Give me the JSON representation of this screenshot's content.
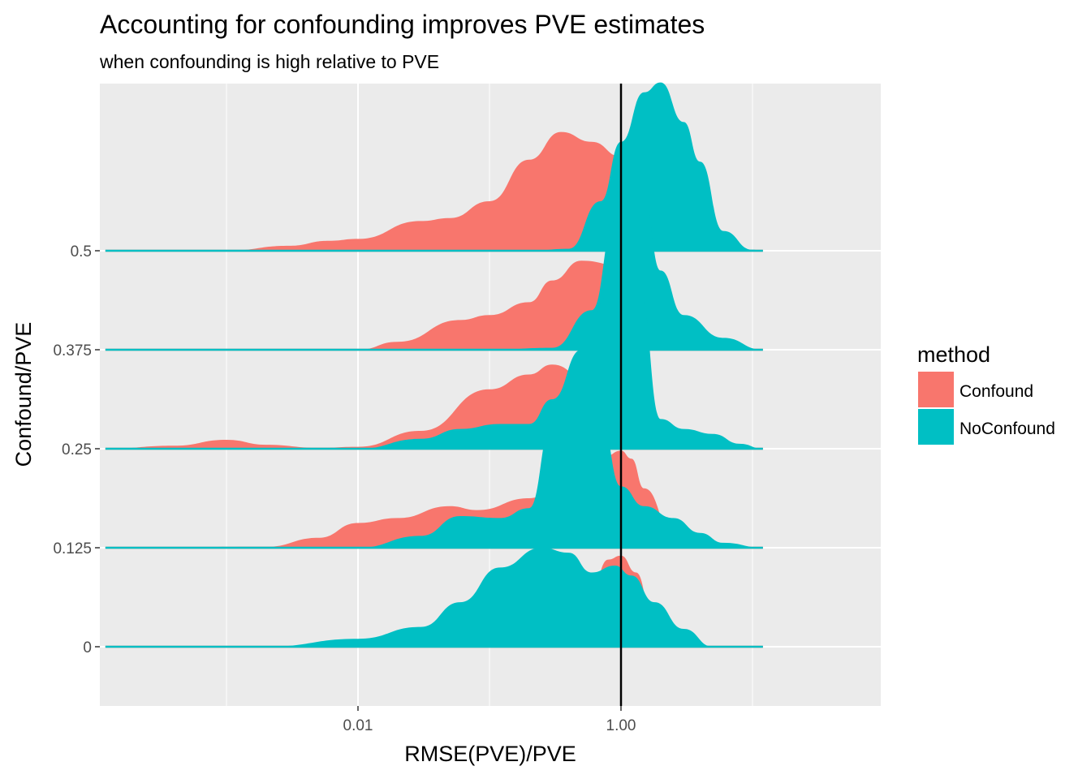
{
  "chart_data": {
    "type": "area",
    "title": "Accounting for confounding improves PVE estimates",
    "subtitle": "when confounding is high relative to PVE",
    "xlabel": "RMSE(PVE)/PVE",
    "ylabel": "Confound/PVE",
    "x_scale": "log10",
    "xlim": [
      6e-05,
      15
    ],
    "x_ticks": [
      {
        "value": 0.01,
        "label": "0.01"
      },
      {
        "value": 1,
        "label": "1.00"
      }
    ],
    "x_minor_ticks": [
      0.001,
      0.1,
      10
    ],
    "y_ticks": [
      "0",
      "0.125",
      "0.25",
      "0.375",
      "0.5"
    ],
    "vline_x": 1.0,
    "legend": {
      "title": "method",
      "position": "right"
    },
    "colors": {
      "Confound": "#F8766D",
      "NoConfound": "#00BFC4"
    },
    "series": [
      {
        "name": "Confound",
        "ridges": [
          {
            "group": "0",
            "points": [
              [
                0.00012,
                0
              ],
              [
                0.0034,
                0
              ],
              [
                0.01,
                0.01
              ],
              [
                0.2,
                0.02
              ],
              [
                0.35,
                0.04
              ],
              [
                0.45,
                0.2
              ],
              [
                0.6,
                0.6
              ],
              [
                0.8,
                0.88
              ],
              [
                1.0,
                0.92
              ],
              [
                1.3,
                0.75
              ],
              [
                1.8,
                0.2
              ],
              [
                3,
                0.02
              ],
              [
                5,
                0
              ],
              [
                12,
                0
              ]
            ]
          },
          {
            "group": "0.125",
            "points": [
              [
                0.00012,
                0
              ],
              [
                0.002,
                0.01
              ],
              [
                0.005,
                0.1
              ],
              [
                0.01,
                0.25
              ],
              [
                0.02,
                0.3
              ],
              [
                0.05,
                0.42
              ],
              [
                0.08,
                0.38
              ],
              [
                0.2,
                0.5
              ],
              [
                0.5,
                0.85
              ],
              [
                0.75,
                0.92
              ],
              [
                1.0,
                0.98
              ],
              [
                1.2,
                0.9
              ],
              [
                1.5,
                0.6
              ],
              [
                2.5,
                0.15
              ],
              [
                5,
                0.02
              ],
              [
                12,
                0
              ]
            ]
          },
          {
            "group": "0.25",
            "points": [
              [
                0.00012,
                0
              ],
              [
                0.0004,
                0.03
              ],
              [
                0.001,
                0.09
              ],
              [
                0.002,
                0.04
              ],
              [
                0.005,
                0.01
              ],
              [
                0.01,
                0.02
              ],
              [
                0.03,
                0.18
              ],
              [
                0.1,
                0.6
              ],
              [
                0.2,
                0.75
              ],
              [
                0.3,
                0.85
              ],
              [
                0.6,
                0.65
              ],
              [
                1.0,
                0.3
              ],
              [
                2,
                0.05
              ],
              [
                5,
                0
              ],
              [
                12,
                0
              ]
            ]
          },
          {
            "group": "0.375",
            "points": [
              [
                0.00012,
                0
              ],
              [
                0.01,
                0
              ],
              [
                0.02,
                0.08
              ],
              [
                0.06,
                0.3
              ],
              [
                0.1,
                0.35
              ],
              [
                0.2,
                0.48
              ],
              [
                0.3,
                0.7
              ],
              [
                0.5,
                0.9
              ],
              [
                1.0,
                0.85
              ],
              [
                1.5,
                0.5
              ],
              [
                3,
                0.1
              ],
              [
                6,
                0.01
              ],
              [
                12,
                0
              ]
            ]
          },
          {
            "group": "0.5",
            "points": [
              [
                0.00012,
                0
              ],
              [
                0.001,
                0
              ],
              [
                0.003,
                0.05
              ],
              [
                0.006,
                0.1
              ],
              [
                0.01,
                0.12
              ],
              [
                0.03,
                0.3
              ],
              [
                0.05,
                0.33
              ],
              [
                0.1,
                0.5
              ],
              [
                0.2,
                0.92
              ],
              [
                0.35,
                1.2
              ],
              [
                0.6,
                1.1
              ],
              [
                1.0,
                0.95
              ],
              [
                1.5,
                0.5
              ],
              [
                3,
                0.03
              ],
              [
                12,
                0
              ]
            ]
          }
        ]
      },
      {
        "name": "NoConfound",
        "ridges": [
          {
            "group": "0",
            "points": [
              [
                0.00012,
                0
              ],
              [
                0.002,
                0
              ],
              [
                0.01,
                0.08
              ],
              [
                0.03,
                0.2
              ],
              [
                0.06,
                0.45
              ],
              [
                0.12,
                0.8
              ],
              [
                0.25,
                1.0
              ],
              [
                0.4,
                0.95
              ],
              [
                0.6,
                0.75
              ],
              [
                0.9,
                0.82
              ],
              [
                1.2,
                0.72
              ],
              [
                1.8,
                0.45
              ],
              [
                3,
                0.18
              ],
              [
                5,
                0
              ],
              [
                12,
                0
              ]
            ]
          },
          {
            "group": "0.125",
            "points": [
              [
                0.00012,
                0
              ],
              [
                0.01,
                0
              ],
              [
                0.03,
                0.12
              ],
              [
                0.06,
                0.32
              ],
              [
                0.12,
                0.3
              ],
              [
                0.2,
                0.4
              ],
              [
                0.3,
                1.25
              ],
              [
                0.45,
                1.6
              ],
              [
                0.7,
                1.3
              ],
              [
                1.0,
                0.62
              ],
              [
                1.5,
                0.42
              ],
              [
                2.5,
                0.3
              ],
              [
                4,
                0.15
              ],
              [
                6,
                0.05
              ],
              [
                12,
                0
              ]
            ]
          },
          {
            "group": "0.25",
            "points": [
              [
                0.00012,
                0
              ],
              [
                0.01,
                0
              ],
              [
                0.03,
                0.1
              ],
              [
                0.06,
                0.2
              ],
              [
                0.12,
                0.25
              ],
              [
                0.2,
                0.25
              ],
              [
                0.3,
                0.5
              ],
              [
                0.5,
                1.0
              ],
              [
                0.8,
                1.55
              ],
              [
                1.0,
                1.7
              ],
              [
                1.4,
                1.55
              ],
              [
                2,
                0.3
              ],
              [
                3,
                0.2
              ],
              [
                5,
                0.15
              ],
              [
                8,
                0.05
              ],
              [
                12,
                0
              ]
            ]
          },
          {
            "group": "0.375",
            "points": [
              [
                0.00012,
                0
              ],
              [
                0.1,
                0
              ],
              [
                0.3,
                0.02
              ],
              [
                0.6,
                0.4
              ],
              [
                0.9,
                1.3
              ],
              [
                1.2,
                1.6
              ],
              [
                1.5,
                1.5
              ],
              [
                2,
                0.8
              ],
              [
                3,
                0.35
              ],
              [
                6,
                0.12
              ],
              [
                12,
                0
              ]
            ]
          },
          {
            "group": "0.5",
            "points": [
              [
                0.00012,
                0
              ],
              [
                0.2,
                0
              ],
              [
                0.4,
                0.02
              ],
              [
                0.7,
                0.5
              ],
              [
                1.0,
                1.1
              ],
              [
                1.5,
                1.6
              ],
              [
                2,
                1.7
              ],
              [
                3,
                1.3
              ],
              [
                4,
                0.9
              ],
              [
                6,
                0.2
              ],
              [
                10,
                0.01
              ],
              [
                12,
                0
              ]
            ]
          }
        ]
      }
    ]
  }
}
